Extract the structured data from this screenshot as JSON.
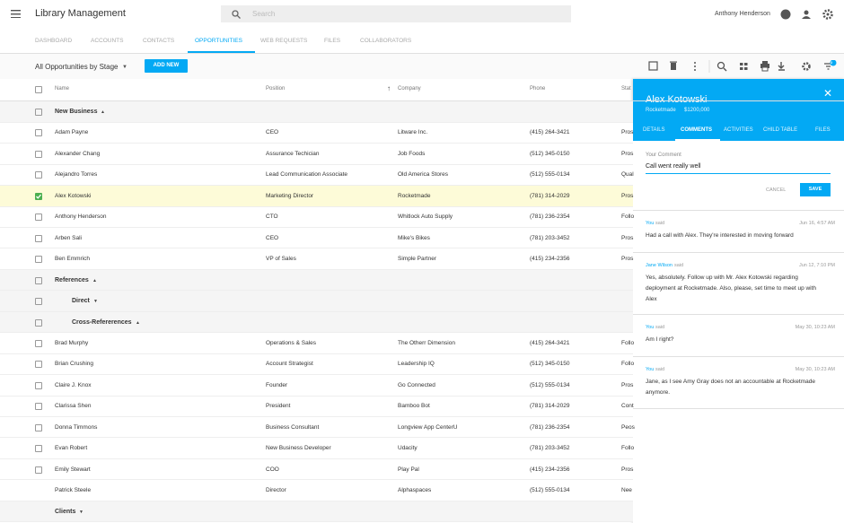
{
  "header": {
    "title": "Library Management",
    "search_placeholder": "Search",
    "user": "Anthony Henderson"
  },
  "tabs": {
    "items": [
      "DASHBOARD",
      "ACCOUNTS",
      "CONTACTS",
      "OPPORTUNITIES",
      "WEB REQUESTS",
      "FILES",
      "COLLABORATORS"
    ],
    "active": 3
  },
  "toolbar": {
    "view": "All Opportunities by Stage",
    "add_button": "ADD NEW",
    "filter_count": "2"
  },
  "table": {
    "columns": [
      "Name",
      "Position",
      "Company",
      "Phone",
      "Stat"
    ],
    "rows": [
      {
        "group": "New Business",
        "level": 0,
        "expanded": true,
        "checkbox": true
      },
      {
        "cells": [
          "Adam Payne",
          "CEO",
          "Litware Inc.",
          "(415) 264-3421",
          "Pros"
        ],
        "checkbox": true
      },
      {
        "cells": [
          "Alexander Chang",
          "Assurance Techician",
          "Job Foods",
          "(512) 345-0150",
          "Pros"
        ],
        "checkbox": true
      },
      {
        "cells": [
          "Alejandro Torres",
          "Lead Communication Associate",
          "Old America Stores",
          "(512) 555-0134",
          "Qual"
        ],
        "checkbox": true
      },
      {
        "cells": [
          "Alex Kotowski",
          "Marketing Director",
          "Rocketmade",
          "(781) 314-2029",
          "Pros"
        ],
        "checkbox": true,
        "selected": true
      },
      {
        "cells": [
          "Anthony Henderson",
          "CTO",
          "Whitlock Auto Supply",
          "(781) 236-2354",
          "Follo"
        ],
        "checkbox": true
      },
      {
        "cells": [
          "Arben Sali",
          "CEO",
          "Mike's Bikes",
          "(781) 203-3452",
          "Pros"
        ],
        "checkbox": true
      },
      {
        "cells": [
          "Ben Emmrich",
          "VP of Sales",
          "Simple Partner",
          "(415) 234-2356",
          "Pros"
        ],
        "checkbox": true
      },
      {
        "group": "References",
        "level": 0,
        "expanded": true,
        "checkbox": true
      },
      {
        "group": "Direct",
        "level": 1,
        "expanded": false,
        "checkbox": true
      },
      {
        "group": "Cross-Refererences",
        "level": 1,
        "expanded": true,
        "checkbox": true
      },
      {
        "cells": [
          "Brad Murphy",
          "Operations & Sales",
          "The Otherr Dimension",
          "(415) 264-3421",
          "Follo"
        ],
        "checkbox": true
      },
      {
        "cells": [
          "Brian Crushing",
          "Account Strategist",
          "Leadership IQ",
          "(512) 345-0150",
          "Follo"
        ],
        "checkbox": true
      },
      {
        "cells": [
          "Claire J. Knox",
          "Founder",
          "Go Connected",
          "(512) 555-0134",
          "Pros"
        ],
        "checkbox": true
      },
      {
        "cells": [
          "Clarissa Shen",
          "President",
          "Bamboo Bot",
          "(781) 314-2029",
          "Cont"
        ],
        "checkbox": true
      },
      {
        "cells": [
          "Donna Timmons",
          "Business Consultant",
          "Longview App CenterU",
          "(781) 236-2354",
          "Peos"
        ],
        "checkbox": true
      },
      {
        "cells": [
          "Evan Robert",
          "New Business Developer",
          "Udacity",
          "(781) 203-3452",
          "Follo"
        ],
        "checkbox": true
      },
      {
        "cells": [
          "Emily Stewart",
          "COO",
          "Play Pal",
          "(415) 234-2356",
          "Pros"
        ],
        "checkbox": true
      },
      {
        "cells": [
          "Patrick Steele",
          "Director",
          "Alphaspaces",
          "(512) 555-0134",
          "Nee"
        ],
        "checkbox": false
      },
      {
        "group": "Clients",
        "level": 0,
        "expanded": false,
        "checkbox": false
      }
    ]
  },
  "panel": {
    "name": "Alex Kotowski",
    "company": "Rocketmade",
    "amount": "$1200,000",
    "tabs": [
      "DETAILS",
      "COMMENTS",
      "ACTIVITIES",
      "CHILD TABLE",
      "FILES"
    ],
    "active_tab": 1,
    "form": {
      "label": "Your Comment",
      "input": "Call went really well",
      "cancel": "CANCEL",
      "save": "SAVE"
    },
    "comments": [
      {
        "author": "You",
        "verb": "said",
        "date": "Jun 16, 4:57 AM",
        "text": "Had a call with Alex. They're interested in moving forward"
      },
      {
        "author": "Jane Wilson",
        "verb": "said",
        "date": "Jun 12, 7:10 PM",
        "text": "Yes, absolutely. Follow up with Mr. Alex Kotowski regarding deployment at Rocketmade. Also, please, set time to meet up with Alex"
      },
      {
        "author": "You",
        "verb": "said",
        "date": "May 30, 10:23 AM",
        "text": "Am I right?"
      },
      {
        "author": "You",
        "verb": "said",
        "date": "May 30, 10:23 AM",
        "text": "Jane, as I see Amy Gray does not an accountable at Rocketmade anymore."
      }
    ]
  }
}
